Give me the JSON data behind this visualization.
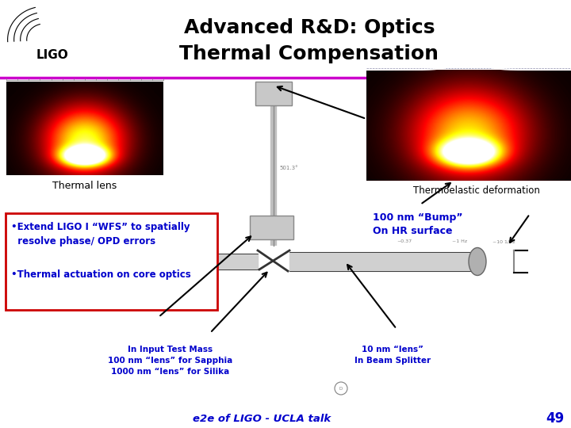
{
  "title_line1": "Advanced R&D: Optics",
  "title_line2": "Thermal Compensation",
  "title_fontsize": 18,
  "bg_color": "#ffffff",
  "slide_number": "49",
  "footer_text": "e2e of LIGO - UCLA talk",
  "thermoelastic_label": "Thermoelastic deformation",
  "thermal_lens_label": "Thermal lens",
  "bump_label": "100 nm “Bump”\nOn HR surface",
  "bullet1": "•Extend LIGO I “WFS” to spatially\n  resolve phase/ OPD errors",
  "bullet2": "•Thermal actuation on core optics",
  "input_test_mass_label": "In Input Test Mass\n100 nm “lens” for Sapphia\n1000 nm “lens” for Silika",
  "beam_splitter_label": "10 nm “lens”\nIn Beam Splitter",
  "blue_color": "#0000cc",
  "magenta_color": "#cc00cc",
  "red_color": "#cc0000",
  "gray_color": "#aaaaaa",
  "darkgray_color": "#666666"
}
